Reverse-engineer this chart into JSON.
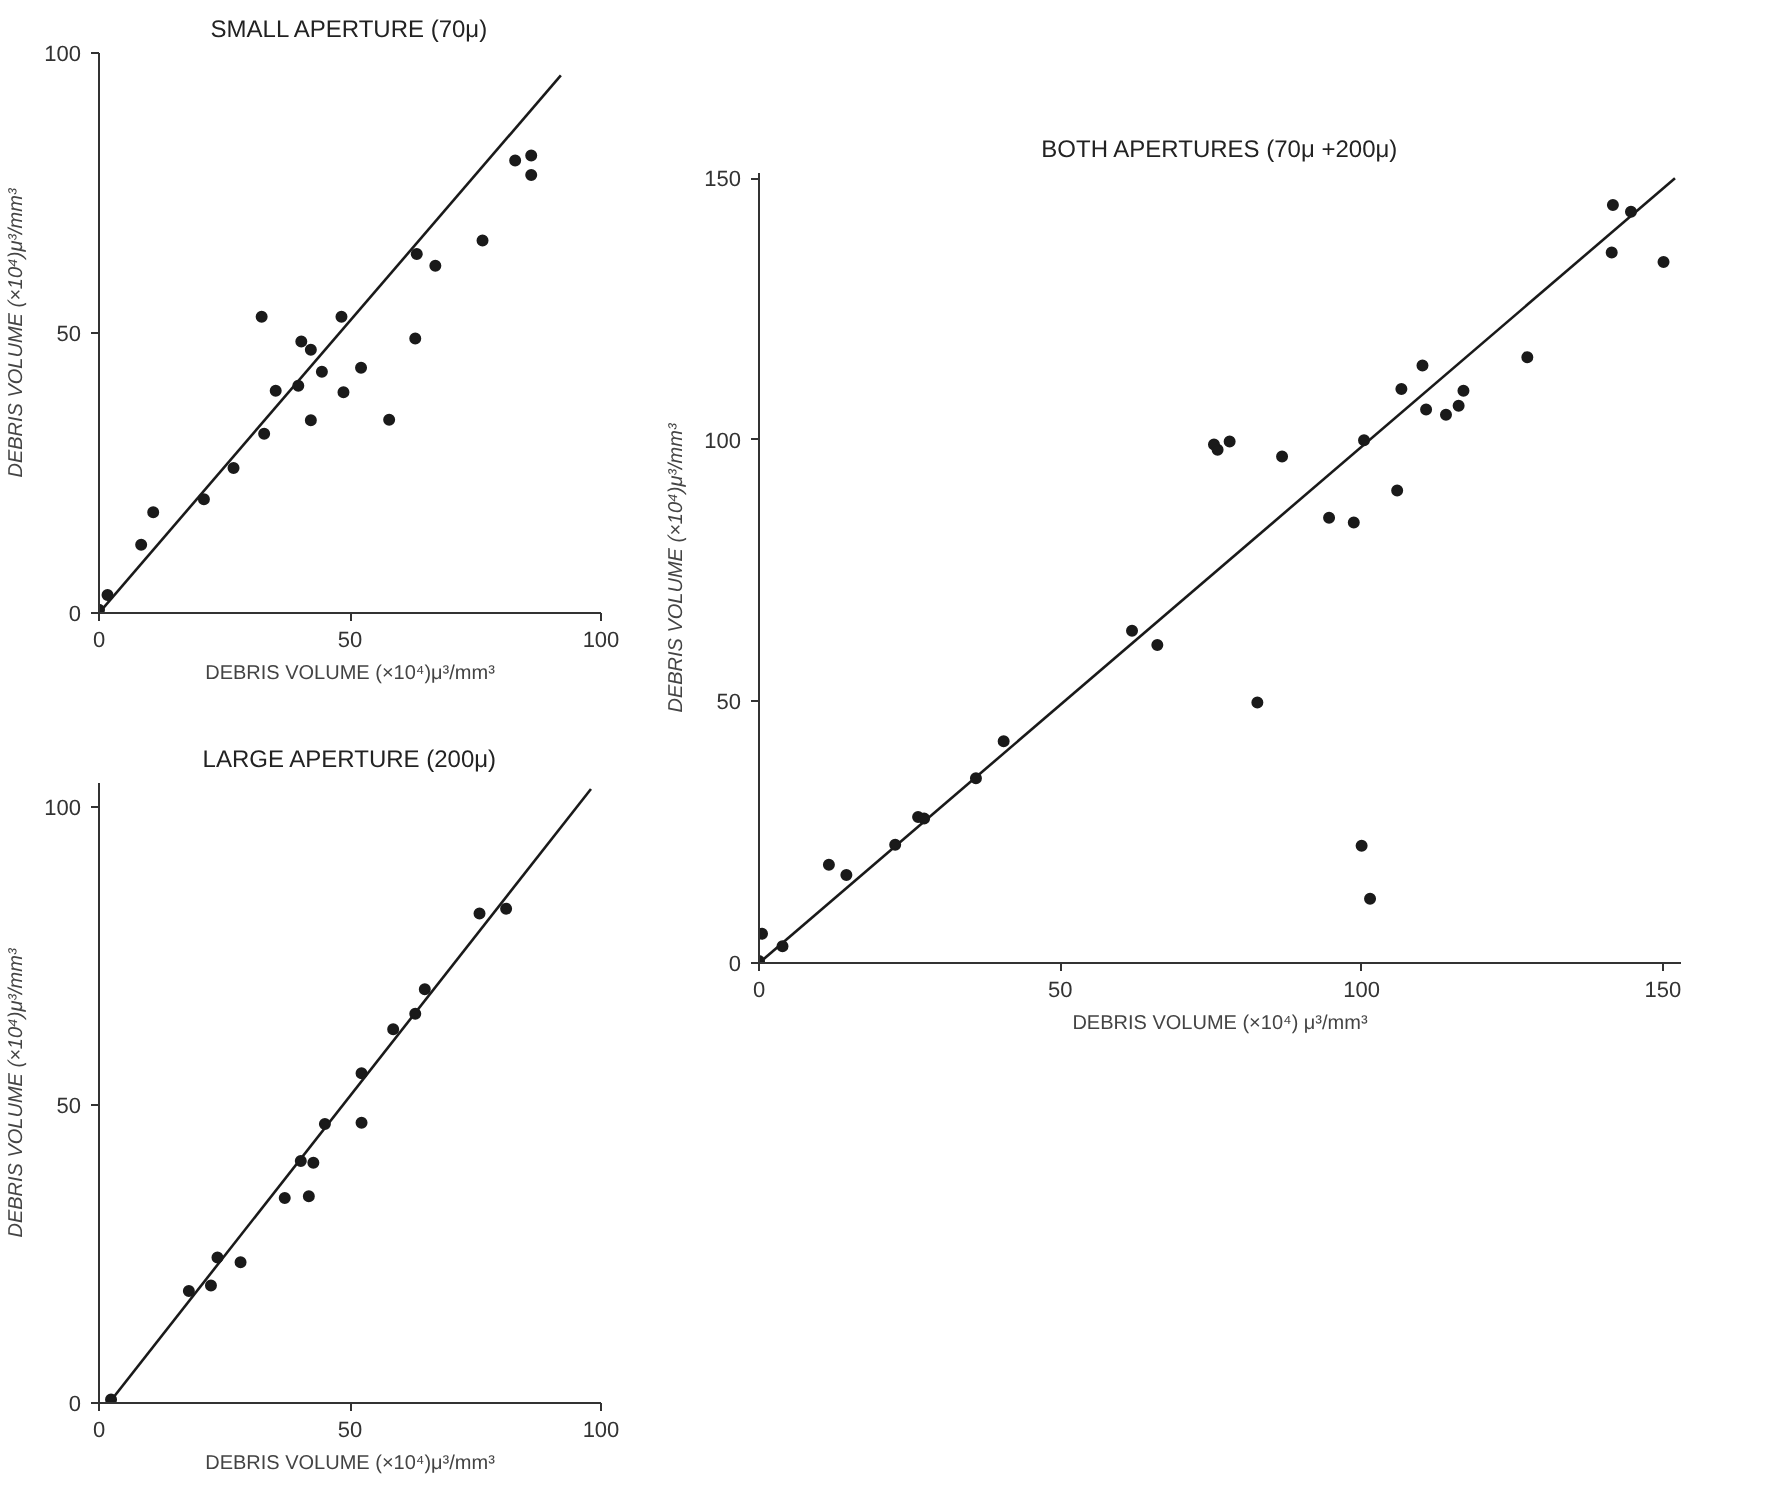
{
  "chart_data": [
    {
      "type": "scatter",
      "title": "SMALL APERTURE (70μ)",
      "xlabel": "DEBRIS VOLUME (×10⁴)μ³/mm³",
      "ylabel": "DEBRIS VOLUME (×10⁴)μ³/mm³",
      "xlim": [
        0,
        100
      ],
      "ylim": [
        0,
        100
      ],
      "xticks": [
        0,
        50,
        100
      ],
      "yticks": [
        0,
        50,
        100
      ],
      "grid": false,
      "series": [
        {
          "marker": "circle",
          "color": "#1a1a1a",
          "x": [
            0,
            1.7,
            8.4,
            10.8,
            20.9,
            26.8,
            32.4,
            32.9,
            35.2,
            39.7,
            40.3,
            42.2,
            42.2,
            44.4,
            48.3,
            48.7,
            52.2,
            57.8,
            63,
            63.3,
            67,
            76.4,
            82.9,
            86.1,
            86.1
          ],
          "values": [
            0.6,
            3.2,
            12.2,
            18,
            20.3,
            25.9,
            52.9,
            32,
            39.7,
            40.6,
            48.5,
            47,
            34.4,
            43.1,
            52.9,
            39.4,
            43.8,
            34.5,
            49,
            64.1,
            62,
            66.5,
            80.8,
            81.7,
            78.2
          ]
        },
        {
          "type": "line",
          "marker": "none",
          "color": "#1a1a1a",
          "x": [
            0,
            92
          ],
          "values": [
            0,
            96
          ]
        }
      ]
    },
    {
      "type": "scatter",
      "title": "LARGE APERTURE (200μ)",
      "xlabel": "DEBRIS VOLUME (×10⁴)μ³/mm³",
      "ylabel": "DEBRIS VOLUME (×10⁴)μ³/mm³",
      "xlim": [
        0,
        100
      ],
      "ylim": [
        0,
        104
      ],
      "xticks": [
        0,
        50,
        100
      ],
      "yticks": [
        0,
        50,
        100
      ],
      "grid": false,
      "series": [
        {
          "marker": "circle",
          "color": "#1a1a1a",
          "x": [
            2.4,
            17.9,
            22.3,
            23.6,
            28.2,
            37,
            40.2,
            41.8,
            42.7,
            45,
            52.3,
            52.3,
            58.6,
            63,
            64.9,
            75.8,
            81.1
          ],
          "values": [
            0.6,
            18.8,
            19.7,
            24.4,
            23.6,
            34.4,
            40.6,
            34.7,
            40.3,
            46.8,
            55.3,
            47,
            62.7,
            65.3,
            69.4,
            82.1,
            82.9
          ]
        },
        {
          "type": "line",
          "marker": "none",
          "color": "#1a1a1a",
          "x": [
            2,
            98
          ],
          "values": [
            0,
            103
          ]
        }
      ]
    },
    {
      "type": "scatter",
      "title": "BOTH APERTURES (70μ +200μ)",
      "xlabel": "DEBRIS VOLUME (×10⁴) μ³/mm³",
      "ylabel": "DEBRIS VOLUME (×10⁴)μ³/mm³",
      "xlim": [
        0,
        153
      ],
      "ylim": [
        0,
        151
      ],
      "xticks": [
        0,
        50,
        100,
        150
      ],
      "yticks": [
        0,
        50,
        100,
        150
      ],
      "grid": false,
      "series": [
        {
          "marker": "circle",
          "color": "#1a1a1a",
          "x": [
            0,
            0.5,
            3.9,
            11.6,
            14.5,
            22.6,
            26.4,
            27.4,
            36,
            40.6,
            61.9,
            66.1,
            75.5,
            76.1,
            78.1,
            82.7,
            86.8,
            94.6,
            98.7,
            100.4,
            100,
            101.4,
            105.9,
            106.6,
            110.1,
            110.7,
            114,
            116.1,
            116.9,
            127.5,
            141.5,
            141.7,
            144.7,
            150.1
          ],
          "values": [
            0.4,
            5.6,
            3.2,
            18.8,
            16.8,
            22.6,
            27.9,
            27.6,
            35.3,
            42.4,
            63.5,
            60.8,
            99.1,
            98.1,
            99.7,
            49.8,
            96.8,
            85.1,
            84.2,
            99.9,
            22.4,
            12.3,
            90.3,
            109.7,
            114.2,
            105.8,
            104.8,
            106.5,
            109.4,
            115.8,
            135.8,
            144.9,
            143.6,
            134
          ]
        },
        {
          "type": "line",
          "marker": "none",
          "color": "#1a1a1a",
          "x": [
            0,
            152
          ],
          "values": [
            0,
            150
          ]
        }
      ]
    }
  ]
}
